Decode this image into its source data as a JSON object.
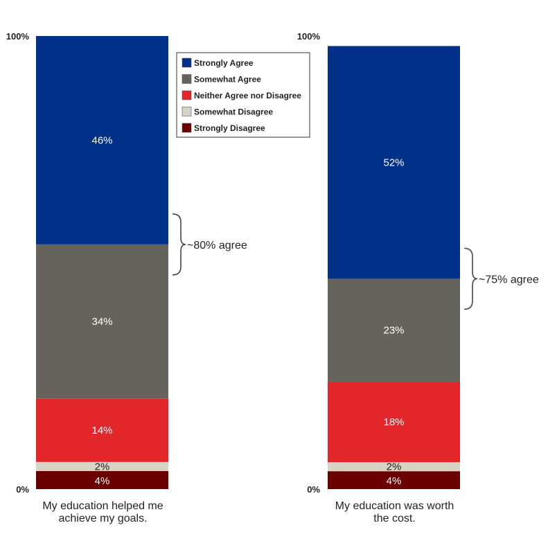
{
  "chart_data": {
    "type": "bar",
    "stacked": true,
    "categories": [
      "My education helped me achieve my goals.",
      "My education was worth the cost."
    ],
    "category_lines": [
      [
        "My education helped me",
        "achieve my goals."
      ],
      [
        "My education was worth",
        "the cost."
      ]
    ],
    "series": [
      {
        "name": "Strongly Disagree",
        "color": "#6b0000",
        "values": [
          4,
          4
        ],
        "labels": [
          "4%",
          "4%"
        ]
      },
      {
        "name": "Somewhat Disagree",
        "color": "#d8d3c4",
        "values": [
          2,
          2
        ],
        "labels": [
          "2%",
          "2%"
        ]
      },
      {
        "name": "Neither Agree nor Disagree",
        "color": "#e3262a",
        "values": [
          14,
          18
        ],
        "labels": [
          "14%",
          "18%"
        ]
      },
      {
        "name": "Somewhat Agree",
        "color": "#66635d",
        "values": [
          34,
          23
        ],
        "labels": [
          "34%",
          "23%"
        ]
      },
      {
        "name": "Strongly Agree",
        "color": "#003087",
        "values": [
          46,
          52
        ],
        "labels": [
          "46%",
          "52%"
        ]
      }
    ],
    "legend_order": [
      "Strongly Agree",
      "Somewhat Agree",
      "Neither Agree nor Disagree",
      "Somewhat Disagree",
      "Strongly Disagree"
    ],
    "ylim": [
      0,
      100
    ],
    "tick_labels": [
      "0%",
      "100%"
    ],
    "annotations": [
      "~80% agree",
      "~75% agree"
    ],
    "legend_position": "top-right of first bar",
    "grid": false
  }
}
